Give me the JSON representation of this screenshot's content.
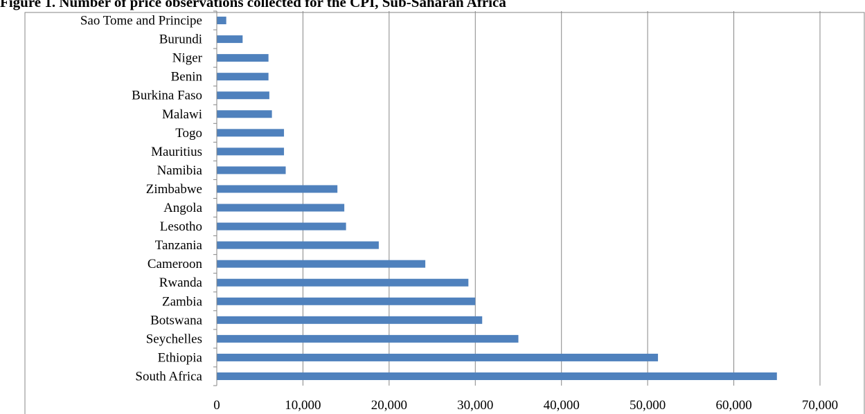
{
  "chart_data": {
    "type": "bar",
    "orientation": "horizontal",
    "title": "Figure 1. Number of price observations collected for the CPI, Sub-Saharan Africa",
    "xlabel": "",
    "ylabel": "",
    "categories": [
      "South Africa",
      "Ethiopia",
      "Seychelles",
      "Botswana",
      "Zambia",
      "Rwanda",
      "Cameroon",
      "Tanzania",
      "Lesotho",
      "Angola",
      "Zimbabwe",
      "Namibia",
      "Mauritius",
      "Togo",
      "Malawi",
      "Burkina Faso",
      "Benin",
      "Niger",
      "Burundi",
      "Sao Tome and Principe"
    ],
    "values": [
      65000,
      51200,
      35000,
      30800,
      30000,
      29200,
      24200,
      18800,
      15000,
      14800,
      14000,
      8000,
      7800,
      7800,
      6400,
      6100,
      6000,
      6000,
      3000,
      1100
    ],
    "xlim": [
      0,
      70000
    ],
    "ticks": [
      0,
      10000,
      20000,
      30000,
      40000,
      50000,
      60000,
      70000
    ],
    "tick_labels": [
      "0",
      "10,000",
      "20,000",
      "30,000",
      "40,000",
      "50,000",
      "60,000",
      "70,000"
    ],
    "grid": true,
    "legend": "none",
    "bar_color": "#4F81BD",
    "grid_color": "#868686",
    "axis_color": "#868686"
  }
}
